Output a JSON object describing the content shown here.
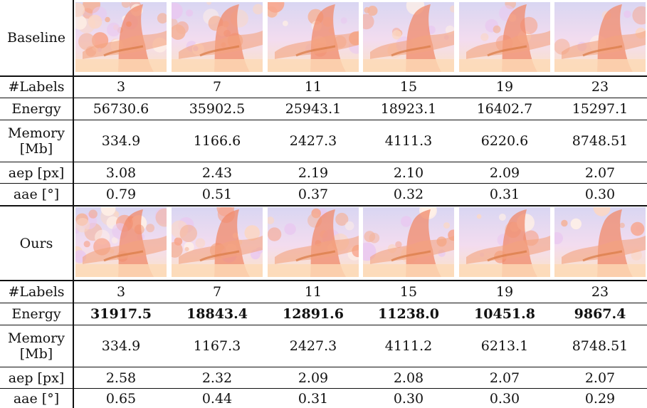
{
  "blocks": [
    {
      "method": "Baseline",
      "labels_header": "#Labels",
      "labels": [
        "3",
        "7",
        "11",
        "15",
        "19",
        "23"
      ],
      "energy_header": "Energy",
      "energy": [
        "56730.6",
        "35902.5",
        "25943.1",
        "18923.1",
        "16402.7",
        "15297.1"
      ],
      "memory_header_1": "Memory",
      "memory_header_2": "[Mb]",
      "memory": [
        "334.9",
        "1166.6",
        "2427.3",
        "4111.3",
        "6220.6",
        "8748.51"
      ],
      "aep_header": "aep [px]",
      "aep": [
        "3.08",
        "2.43",
        "2.19",
        "2.10",
        "2.09",
        "2.07"
      ],
      "aae_header": "aae [°]",
      "aae": [
        "0.79",
        "0.51",
        "0.37",
        "0.32",
        "0.31",
        "0.30"
      ]
    },
    {
      "method": "Ours",
      "labels_header": "#Labels",
      "labels": [
        "3",
        "7",
        "11",
        "15",
        "19",
        "23"
      ],
      "energy_header": "Energy",
      "energy": [
        "31917.5",
        "18843.4",
        "12891.6",
        "11238.0",
        "10451.8",
        "9867.4"
      ],
      "memory_header_1": "Memory",
      "memory_header_2": "[Mb]",
      "memory": [
        "334.9",
        "1167.3",
        "2427.3",
        "4111.2",
        "6213.1",
        "8748.51"
      ],
      "aep_header": "aep [px]",
      "aep": [
        "2.58",
        "2.32",
        "2.09",
        "2.08",
        "2.07",
        "2.07"
      ],
      "aae_header": "aae [°]",
      "aae": [
        "0.65",
        "0.44",
        "0.31",
        "0.30",
        "0.30",
        "0.29"
      ]
    }
  ],
  "colors": {
    "sky": "#d9d6f2",
    "tree": "#f08a6a",
    "ground": "#fbe2c4",
    "border": "#111111"
  }
}
